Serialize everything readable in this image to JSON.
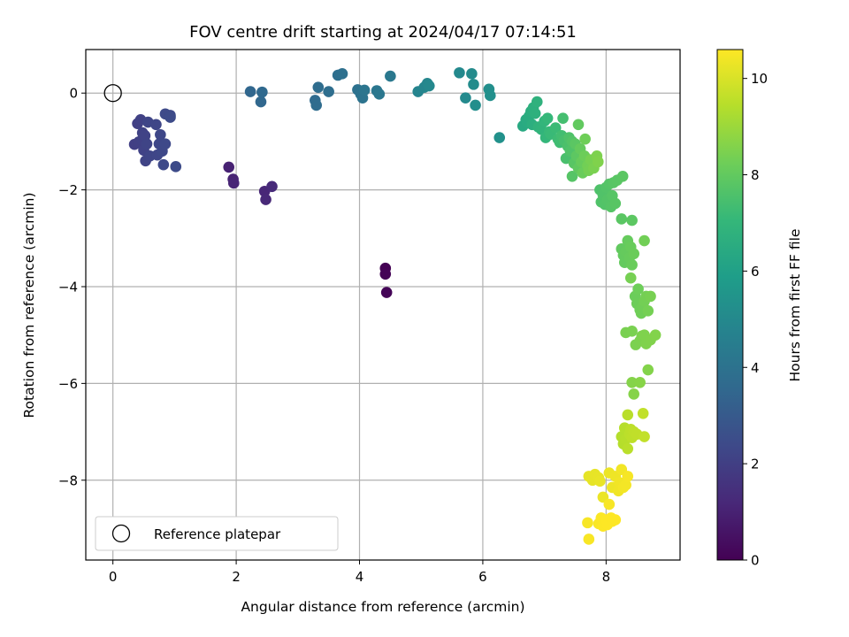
{
  "chart_data": {
    "type": "scatter",
    "title": "FOV centre drift starting at 2024/04/17 07:14:51",
    "xlabel": "Angular distance from reference (arcmin)",
    "ylabel": "Rotation from reference (arcmin)",
    "xlim": [
      -0.44,
      9.2
    ],
    "ylim": [
      -9.65,
      0.9
    ],
    "grid": true,
    "x_ticks": [
      0,
      2,
      4,
      6,
      8
    ],
    "y_ticks": [
      0,
      -2,
      -4,
      -6,
      -8
    ],
    "x_tick_labels": [
      "0",
      "2",
      "4",
      "6",
      "8"
    ],
    "y_tick_labels": [
      "0",
      "−2",
      "−4",
      "−6",
      "−8"
    ],
    "legend": {
      "position": "lower-left",
      "label": "Reference platepar"
    },
    "reference_point": {
      "x": 0,
      "y": 0
    },
    "colorbar": {
      "label": "Hours from first FF file",
      "range": [
        0,
        10.6
      ],
      "ticks": [
        0,
        2,
        4,
        6,
        8,
        10
      ],
      "tick_labels": [
        "0",
        "2",
        "4",
        "6",
        "8",
        "10"
      ],
      "colormap": [
        "#440154",
        "#482878",
        "#3e4989",
        "#31688e",
        "#26828e",
        "#1f9e89",
        "#35b779",
        "#6ece58",
        "#b5de2b",
        "#fde725"
      ]
    },
    "points": [
      [
        4.42,
        -3.62,
        0.0
      ],
      [
        4.42,
        -3.74,
        0.05
      ],
      [
        4.44,
        -4.12,
        0.1
      ],
      [
        1.88,
        -1.53,
        1.0
      ],
      [
        1.95,
        -1.78,
        1.05
      ],
      [
        1.96,
        -1.86,
        1.1
      ],
      [
        2.46,
        -2.03,
        1.15
      ],
      [
        2.48,
        -2.2,
        1.2
      ],
      [
        2.58,
        -1.93,
        1.25
      ],
      [
        0.35,
        -1.06,
        2.0
      ],
      [
        0.4,
        -0.63,
        2.02
      ],
      [
        0.42,
        -1.01,
        2.04
      ],
      [
        0.45,
        -0.55,
        2.06
      ],
      [
        0.47,
        -0.97,
        2.08
      ],
      [
        0.48,
        -0.82,
        2.1
      ],
      [
        0.5,
        -1.18,
        2.12
      ],
      [
        0.52,
        -0.88,
        2.14
      ],
      [
        0.53,
        -1.4,
        2.16
      ],
      [
        0.55,
        -1.05,
        2.18
      ],
      [
        0.57,
        -0.6,
        2.2
      ],
      [
        0.6,
        -1.3,
        2.22
      ],
      [
        0.7,
        -0.65,
        2.24
      ],
      [
        0.72,
        -1.28,
        2.26
      ],
      [
        0.75,
        -1.05,
        2.28
      ],
      [
        0.77,
        -0.86,
        2.3
      ],
      [
        0.8,
        -1.2,
        2.32
      ],
      [
        0.82,
        -1.48,
        2.34
      ],
      [
        0.85,
        -1.05,
        2.36
      ],
      [
        0.85,
        -0.43,
        2.38
      ],
      [
        0.93,
        -0.46,
        2.4
      ],
      [
        0.93,
        -0.5,
        2.42
      ],
      [
        1.02,
        -1.52,
        2.44
      ],
      [
        2.23,
        0.03,
        3.5
      ],
      [
        2.4,
        -0.18,
        3.55
      ],
      [
        2.42,
        0.02,
        3.6
      ],
      [
        3.28,
        -0.15,
        3.65
      ],
      [
        3.3,
        -0.25,
        3.7
      ],
      [
        3.33,
        0.12,
        3.75
      ],
      [
        3.5,
        0.03,
        3.8
      ],
      [
        3.65,
        0.37,
        3.85
      ],
      [
        3.72,
        0.4,
        3.9
      ],
      [
        3.97,
        0.07,
        3.95
      ],
      [
        4.02,
        -0.02,
        4.0
      ],
      [
        4.05,
        -0.1,
        4.05
      ],
      [
        4.08,
        0.06,
        4.1
      ],
      [
        4.28,
        0.05,
        4.15
      ],
      [
        4.32,
        -0.02,
        4.2
      ],
      [
        4.5,
        0.35,
        4.25
      ],
      [
        4.95,
        0.03,
        4.8
      ],
      [
        5.05,
        0.12,
        4.85
      ],
      [
        5.1,
        0.2,
        4.9
      ],
      [
        5.13,
        0.15,
        4.95
      ],
      [
        5.62,
        0.42,
        5.0
      ],
      [
        5.72,
        -0.1,
        5.05
      ],
      [
        5.82,
        0.4,
        5.1
      ],
      [
        5.85,
        0.18,
        5.15
      ],
      [
        5.88,
        -0.25,
        5.2
      ],
      [
        6.1,
        0.08,
        5.25
      ],
      [
        6.12,
        -0.05,
        5.3
      ],
      [
        6.27,
        -0.92,
        5.35
      ],
      [
        6.65,
        -0.68,
        6.4
      ],
      [
        6.7,
        -0.55,
        6.45
      ],
      [
        6.72,
        -0.6,
        6.5
      ],
      [
        6.75,
        -0.48,
        6.55
      ],
      [
        6.78,
        -0.38,
        6.6
      ],
      [
        6.8,
        -0.65,
        6.65
      ],
      [
        6.82,
        -0.3,
        6.7
      ],
      [
        6.85,
        -0.42,
        6.75
      ],
      [
        6.88,
        -0.18,
        6.8
      ],
      [
        6.9,
        -0.7,
        6.85
      ],
      [
        6.95,
        -0.75,
        6.9
      ],
      [
        7.0,
        -0.58,
        6.95
      ],
      [
        7.02,
        -0.92,
        7.0
      ],
      [
        7.05,
        -0.52,
        7.05
      ],
      [
        7.08,
        -0.8,
        7.1
      ],
      [
        7.1,
        -0.85,
        7.15
      ],
      [
        7.18,
        -0.72,
        7.2
      ],
      [
        7.22,
        -0.95,
        7.25
      ],
      [
        7.25,
        -1.02,
        7.3
      ],
      [
        7.28,
        -0.88,
        7.35
      ],
      [
        7.3,
        -0.52,
        7.4
      ],
      [
        7.32,
        -0.98,
        7.45
      ],
      [
        7.35,
        -1.35,
        7.5
      ],
      [
        7.38,
        -1.1,
        7.55
      ],
      [
        7.4,
        -0.92,
        7.6
      ],
      [
        7.42,
        -1.2,
        7.65
      ],
      [
        7.45,
        -1.0,
        7.7
      ],
      [
        7.45,
        -1.72,
        7.75
      ],
      [
        7.48,
        -1.45,
        7.8
      ],
      [
        7.5,
        -1.05,
        7.85
      ],
      [
        7.52,
        -1.3,
        7.9
      ],
      [
        7.55,
        -1.55,
        7.95
      ],
      [
        7.55,
        -0.65,
        8.0
      ],
      [
        7.58,
        -1.15,
        8.05
      ],
      [
        7.6,
        -1.42,
        8.1
      ],
      [
        7.62,
        -1.65,
        8.15
      ],
      [
        7.65,
        -1.3,
        8.2
      ],
      [
        7.66,
        -0.95,
        8.25
      ],
      [
        7.7,
        -1.5,
        8.3
      ],
      [
        7.72,
        -1.6,
        8.35
      ],
      [
        7.75,
        -1.38,
        8.4
      ],
      [
        7.8,
        -1.55,
        8.45
      ],
      [
        7.85,
        -1.3,
        8.5
      ],
      [
        7.87,
        -1.42,
        8.55
      ],
      [
        7.9,
        -2.0,
        7.6
      ],
      [
        7.92,
        -2.25,
        7.62
      ],
      [
        7.95,
        -2.1,
        7.64
      ],
      [
        7.98,
        -2.3,
        7.66
      ],
      [
        8.0,
        -1.95,
        7.68
      ],
      [
        8.02,
        -2.2,
        7.7
      ],
      [
        8.05,
        -1.88,
        7.72
      ],
      [
        8.08,
        -2.35,
        7.74
      ],
      [
        8.1,
        -2.12,
        7.76
      ],
      [
        8.12,
        -1.85,
        7.78
      ],
      [
        8.15,
        -2.28,
        7.8
      ],
      [
        8.18,
        -1.8,
        7.82
      ],
      [
        8.25,
        -2.6,
        7.84
      ],
      [
        8.27,
        -1.72,
        7.86
      ],
      [
        8.42,
        -2.63,
        7.88
      ],
      [
        8.25,
        -3.22,
        8.0
      ],
      [
        8.28,
        -3.35,
        8.02
      ],
      [
        8.3,
        -3.5,
        8.04
      ],
      [
        8.32,
        -3.28,
        8.06
      ],
      [
        8.35,
        -3.05,
        8.08
      ],
      [
        8.38,
        -3.4,
        8.1
      ],
      [
        8.4,
        -3.18,
        8.12
      ],
      [
        8.42,
        -3.55,
        8.14
      ],
      [
        8.45,
        -3.32,
        8.16
      ],
      [
        8.47,
        -4.2,
        8.18
      ],
      [
        8.5,
        -4.35,
        8.2
      ],
      [
        8.52,
        -4.05,
        8.22
      ],
      [
        8.55,
        -4.48,
        8.24
      ],
      [
        8.57,
        -4.55,
        8.26
      ],
      [
        8.6,
        -4.4,
        8.28
      ],
      [
        8.62,
        -3.05,
        8.3
      ],
      [
        8.62,
        -4.3,
        8.32
      ],
      [
        8.65,
        -4.2,
        8.34
      ],
      [
        8.68,
        -4.5,
        8.36
      ],
      [
        8.4,
        -3.82,
        8.38
      ],
      [
        8.72,
        -4.2,
        8.4
      ],
      [
        8.32,
        -4.95,
        8.42
      ],
      [
        8.42,
        -4.92,
        8.44
      ],
      [
        8.48,
        -5.2,
        8.46
      ],
      [
        8.55,
        -5.12,
        8.48
      ],
      [
        8.58,
        -5.02,
        8.5
      ],
      [
        8.62,
        -5.0,
        8.52
      ],
      [
        8.65,
        -5.18,
        8.54
      ],
      [
        8.72,
        -5.1,
        8.56
      ],
      [
        8.8,
        -5.0,
        8.58
      ],
      [
        8.68,
        -5.72,
        8.6
      ],
      [
        8.42,
        -5.98,
        8.62
      ],
      [
        8.45,
        -6.22,
        8.64
      ],
      [
        8.55,
        -5.98,
        8.66
      ],
      [
        8.25,
        -7.1,
        9.4
      ],
      [
        8.28,
        -7.25,
        9.42
      ],
      [
        8.3,
        -6.92,
        9.44
      ],
      [
        8.32,
        -7.15,
        9.46
      ],
      [
        8.35,
        -6.65,
        9.48
      ],
      [
        8.35,
        -7.35,
        9.5
      ],
      [
        8.38,
        -7.05,
        9.52
      ],
      [
        8.4,
        -6.95,
        9.54
      ],
      [
        8.42,
        -7.12,
        9.56
      ],
      [
        8.45,
        -7.0,
        9.58
      ],
      [
        8.5,
        -7.05,
        9.6
      ],
      [
        8.6,
        -6.62,
        9.62
      ],
      [
        8.62,
        -7.1,
        9.64
      ],
      [
        7.72,
        -7.92,
        10.2
      ],
      [
        7.78,
        -8.0,
        10.22
      ],
      [
        7.82,
        -7.88,
        10.24
      ],
      [
        7.88,
        -7.95,
        10.26
      ],
      [
        7.9,
        -8.02,
        10.28
      ],
      [
        7.95,
        -8.35,
        10.3
      ],
      [
        8.05,
        -7.85,
        10.32
      ],
      [
        8.1,
        -8.15,
        10.34
      ],
      [
        8.15,
        -7.92,
        10.36
      ],
      [
        8.2,
        -8.22,
        10.38
      ],
      [
        8.22,
        -8.05,
        10.4
      ],
      [
        8.25,
        -7.78,
        10.42
      ],
      [
        8.28,
        -8.15,
        10.44
      ],
      [
        8.32,
        -8.1,
        10.46
      ],
      [
        8.35,
        -7.92,
        10.48
      ],
      [
        8.05,
        -8.5,
        10.5
      ],
      [
        7.7,
        -8.88,
        10.5
      ],
      [
        7.72,
        -9.22,
        10.52
      ],
      [
        7.88,
        -8.9,
        10.54
      ],
      [
        7.92,
        -8.78,
        10.56
      ],
      [
        7.95,
        -8.95,
        10.58
      ],
      [
        8.0,
        -8.82,
        10.6
      ],
      [
        8.02,
        -8.92,
        10.6
      ],
      [
        8.08,
        -8.78,
        10.6
      ],
      [
        8.1,
        -8.85,
        10.6
      ],
      [
        8.15,
        -8.82,
        10.6
      ]
    ]
  }
}
